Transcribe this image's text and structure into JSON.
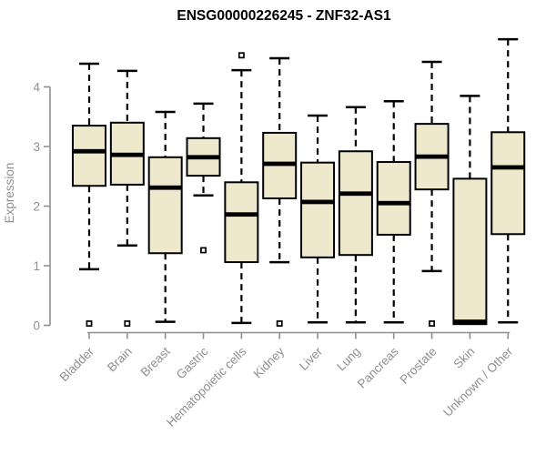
{
  "header": {
    "title": "ENSG00000226245 - ZNF32-AS1"
  },
  "chart_data": {
    "type": "boxplot",
    "title": "ENSG00000226245 - ZNF32-AS1",
    "xlabel": "",
    "ylabel": "Expression",
    "ylim": [
      0,
      4
    ],
    "yticks": [
      0,
      1,
      2,
      3,
      4
    ],
    "grid": false,
    "legend": "none",
    "categories": [
      "Bladder",
      "Brain",
      "Breast",
      "Gastric",
      "Hematopoietic cells",
      "Kidney",
      "Liver",
      "Lung",
      "Pancreas",
      "Prostate",
      "Skin",
      "Unknown / Other"
    ],
    "boxes": [
      {
        "category": "Bladder",
        "whisker_low": 0.94,
        "q1": 2.34,
        "median": 2.92,
        "q3": 3.35,
        "whisker_high": 4.39,
        "outliers": [
          0.03
        ]
      },
      {
        "category": "Brain",
        "whisker_low": 1.34,
        "q1": 2.36,
        "median": 2.86,
        "q3": 3.4,
        "whisker_high": 4.27,
        "outliers": [
          0.03
        ]
      },
      {
        "category": "Breast",
        "whisker_low": 0.06,
        "q1": 1.21,
        "median": 2.31,
        "q3": 2.82,
        "whisker_high": 3.58,
        "outliers": []
      },
      {
        "category": "Gastric",
        "whisker_low": 2.18,
        "q1": 2.51,
        "median": 2.82,
        "q3": 3.14,
        "whisker_high": 3.72,
        "outliers": [
          1.26
        ]
      },
      {
        "category": "Hematopoietic cells",
        "whisker_low": 0.04,
        "q1": 1.06,
        "median": 1.86,
        "q3": 2.4,
        "whisker_high": 4.28,
        "outliers": [
          4.53
        ]
      },
      {
        "category": "Kidney",
        "whisker_low": 1.06,
        "q1": 2.13,
        "median": 2.71,
        "q3": 3.23,
        "whisker_high": 4.48,
        "outliers": [
          0.03
        ]
      },
      {
        "category": "Liver",
        "whisker_low": 0.05,
        "q1": 1.14,
        "median": 2.07,
        "q3": 2.73,
        "whisker_high": 3.52,
        "outliers": []
      },
      {
        "category": "Lung",
        "whisker_low": 0.05,
        "q1": 1.18,
        "median": 2.21,
        "q3": 2.92,
        "whisker_high": 3.66,
        "outliers": []
      },
      {
        "category": "Pancreas",
        "whisker_low": 0.05,
        "q1": 1.52,
        "median": 2.05,
        "q3": 2.74,
        "whisker_high": 3.76,
        "outliers": []
      },
      {
        "category": "Prostate",
        "whisker_low": 0.91,
        "q1": 2.28,
        "median": 2.83,
        "q3": 3.38,
        "whisker_high": 4.42,
        "outliers": [
          0.03
        ]
      },
      {
        "category": "Skin",
        "whisker_low": 0.02,
        "q1": 0.02,
        "median": 0.06,
        "q3": 2.46,
        "whisker_high": 3.85,
        "outliers": []
      },
      {
        "category": "Unknown / Other",
        "whisker_low": 0.05,
        "q1": 1.53,
        "median": 2.65,
        "q3": 3.24,
        "whisker_high": 4.8,
        "outliers": []
      }
    ],
    "colors": {
      "box_fill": "#EEE8CD",
      "box_border": "#000000",
      "median": "#000000",
      "whisker": "#000000",
      "outlier_fill": "#ffffff",
      "outlier_border": "#000000",
      "axis": "#8F8F8F",
      "tick_label": "#8F8F8F",
      "title": "#000000",
      "background": "#ffffff"
    }
  }
}
